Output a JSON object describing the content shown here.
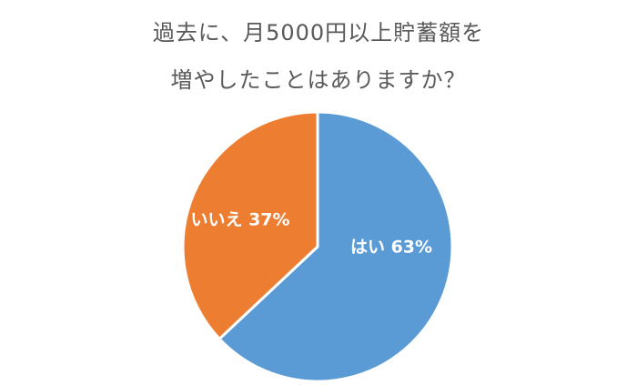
{
  "chart_data": {
    "type": "pie",
    "title": [
      "過去に、月5000円以上貯蓄額を",
      "増やしたことはありますか？"
    ],
    "slices": [
      {
        "label": "はい 63%",
        "value": 63,
        "color": "#5b9bd5"
      },
      {
        "label": "いいえ 37%",
        "value": 37,
        "color": "#ed7d31"
      }
    ],
    "start": "12 o'clock",
    "direction": "clockwise",
    "legend": "none"
  }
}
